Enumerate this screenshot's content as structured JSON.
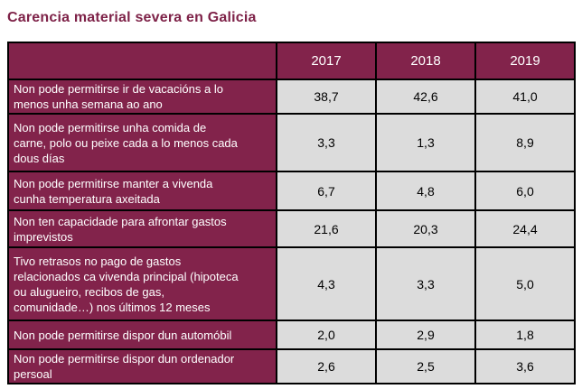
{
  "title": "Carencia material severa en Galicia",
  "colors": {
    "title_text": "#7E2248",
    "header_bg": "#82234B",
    "header_text": "#FFFFFF",
    "value_cell_bg": "#DCDCDC",
    "value_text": "#000000",
    "border": "#000000",
    "page_bg": "#FFFFFF"
  },
  "chart_data": {
    "type": "table",
    "title": "Carencia material severa en Galicia",
    "columns": [
      "2017",
      "2018",
      "2019"
    ],
    "rows": [
      {
        "label": "Non pode permitirse ir de vacacións a lo menos unha semana ao ano",
        "values": [
          "38,7",
          "42,6",
          "41,0"
        ]
      },
      {
        "label": "Non pode permitirse unha comida de carne, polo ou peixe cada a lo menos cada dous días",
        "values": [
          "3,3",
          "1,3",
          "8,9"
        ]
      },
      {
        "label": "Non pode permitirse manter a vivenda cunha temperatura axeitada",
        "values": [
          "6,7",
          "4,8",
          "6,0"
        ]
      },
      {
        "label": "Non ten capacidade para afrontar gastos imprevistos",
        "values": [
          "21,6",
          "20,3",
          "24,4"
        ]
      },
      {
        "label": "Tivo retrasos no pago de gastos relacionados ca vivenda principal (hipoteca ou alugueiro, recibos de gas, comunidade…) nos últimos 12 meses",
        "values": [
          "4,3",
          "3,3",
          "5,0"
        ]
      },
      {
        "label": "Non pode permitirse dispor dun automóbil",
        "values": [
          "2,0",
          "2,9",
          "1,8"
        ]
      },
      {
        "label": "Non pode permitirse dispor dun ordenador persoal",
        "values": [
          "2,6",
          "2,5",
          "3,6"
        ]
      }
    ]
  }
}
